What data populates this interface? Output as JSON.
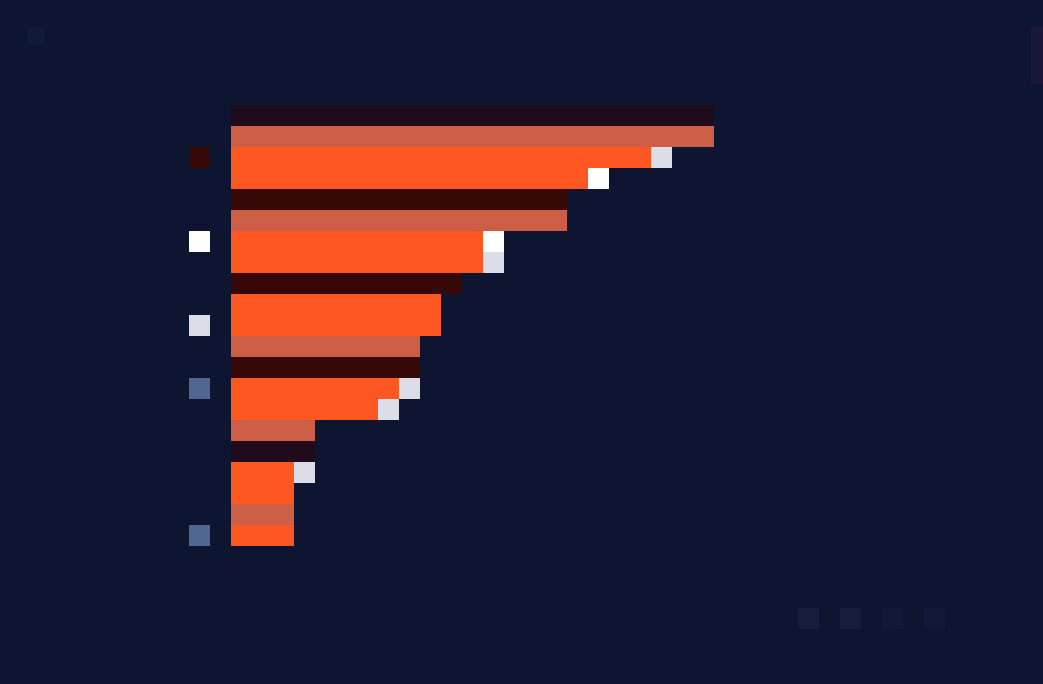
{
  "colors": {
    "background": "#0e1530",
    "primary_bar": "#ff5722",
    "secondary_bar": "#cc5e45",
    "dark_bar": "#360808",
    "darkest_bar": "#200b1c",
    "marker_white": "#ffffff",
    "marker_light": "#dcdde8",
    "marker_grey": "#4d526a",
    "marker_blue": "#4e6690"
  },
  "chart_data": {
    "type": "bar",
    "orientation": "horizontal",
    "title": "",
    "xlabel": "",
    "ylabel": "",
    "grid": false,
    "legend": "none",
    "xlim": [
      0,
      23
    ],
    "bars": [
      {
        "value": 23,
        "style": "darkest"
      },
      {
        "value": 23,
        "style": "secondary"
      },
      {
        "value": 20,
        "style": "primary"
      },
      {
        "value": 17,
        "style": "primary"
      },
      {
        "value": 16,
        "style": "dark"
      },
      {
        "value": 16,
        "style": "secondary"
      },
      {
        "value": 12,
        "style": "primary"
      },
      {
        "value": 12,
        "style": "primary"
      },
      {
        "value": 11,
        "style": "dark"
      },
      {
        "value": 10,
        "style": "primary"
      },
      {
        "value": 10,
        "style": "primary"
      },
      {
        "value": 9,
        "style": "secondary"
      },
      {
        "value": 9,
        "style": "dark"
      },
      {
        "value": 8,
        "style": "primary"
      },
      {
        "value": 7,
        "style": "primary"
      },
      {
        "value": 4,
        "style": "secondary"
      },
      {
        "value": 4,
        "style": "darkest"
      },
      {
        "value": 3,
        "style": "primary"
      },
      {
        "value": 3,
        "style": "primary"
      },
      {
        "value": 3,
        "style": "secondary"
      },
      {
        "value": 3,
        "style": "primary"
      }
    ],
    "end_markers": [
      {
        "bar": 2,
        "style": "light"
      },
      {
        "bar": 3,
        "style": "white"
      },
      {
        "bar": 6,
        "style": "white"
      },
      {
        "bar": 7,
        "style": "light"
      },
      {
        "bar": 13,
        "style": "light"
      },
      {
        "bar": 14,
        "style": "light"
      },
      {
        "bar": 17,
        "style": "light"
      }
    ],
    "label_markers": [
      {
        "bar": 2,
        "style": "dark"
      },
      {
        "bar": 6,
        "style": "white"
      },
      {
        "bar": 10,
        "style": "light"
      },
      {
        "bar": 13,
        "style": "blue"
      },
      {
        "bar": 20,
        "style": "blue"
      }
    ]
  }
}
